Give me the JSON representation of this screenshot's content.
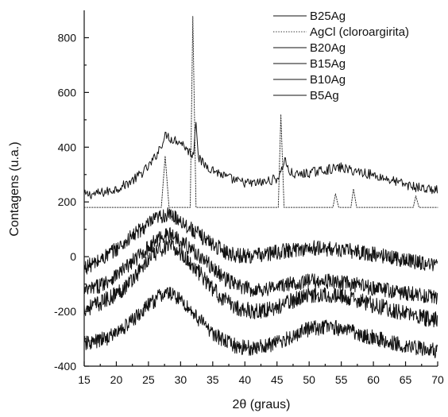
{
  "chart_data": {
    "type": "line",
    "xlabel": "2θ (graus)",
    "ylabel": "Contagens (u.a.)",
    "xlim": [
      15,
      70
    ],
    "ylim": [
      -400,
      900
    ],
    "x_ticks": [
      15,
      20,
      25,
      30,
      35,
      40,
      45,
      50,
      55,
      60,
      65,
      70
    ],
    "y_ticks": [
      -400,
      -200,
      0,
      200,
      400,
      600,
      800
    ],
    "grid": false,
    "legend_position": "top-right",
    "series": [
      {
        "name": "B25Ag",
        "style": "solid",
        "points": [
          [
            15,
            226
          ],
          [
            17,
            230
          ],
          [
            19,
            240
          ],
          [
            21,
            258
          ],
          [
            23,
            286
          ],
          [
            25,
            328
          ],
          [
            26,
            362
          ],
          [
            27,
            410
          ],
          [
            27.8,
            448
          ],
          [
            28.5,
            430
          ],
          [
            29.5,
            425
          ],
          [
            30.5,
            410
          ],
          [
            31,
            390
          ],
          [
            32,
            372
          ],
          [
            32.4,
            505
          ],
          [
            32.8,
            360
          ],
          [
            33.5,
            340
          ],
          [
            35,
            318
          ],
          [
            37,
            292
          ],
          [
            39,
            274
          ],
          [
            41,
            267
          ],
          [
            43,
            272
          ],
          [
            45,
            286
          ],
          [
            45.7,
            312
          ],
          [
            46.2,
            362
          ],
          [
            46.8,
            310
          ],
          [
            48,
            298
          ],
          [
            50,
            306
          ],
          [
            52,
            315
          ],
          [
            54,
            322
          ],
          [
            55,
            326
          ],
          [
            56,
            318
          ],
          [
            58,
            310
          ],
          [
            60,
            298
          ],
          [
            62,
            285
          ],
          [
            64,
            270
          ],
          [
            66,
            257
          ],
          [
            68,
            248
          ],
          [
            70,
            242
          ]
        ]
      },
      {
        "name": "AgCl (cloroargirita)",
        "style": "dotted",
        "points": [
          [
            15,
            180
          ],
          [
            27,
            180
          ],
          [
            27.6,
            368
          ],
          [
            28.2,
            180
          ],
          [
            31.5,
            180
          ],
          [
            31.9,
            878
          ],
          [
            32.4,
            180
          ],
          [
            45.2,
            180
          ],
          [
            45.6,
            520
          ],
          [
            46.1,
            180
          ],
          [
            53.7,
            180
          ],
          [
            54.1,
            230
          ],
          [
            54.6,
            180
          ],
          [
            56.5,
            180
          ],
          [
            56.9,
            248
          ],
          [
            57.4,
            180
          ],
          [
            66.2,
            180
          ],
          [
            66.6,
            222
          ],
          [
            67.1,
            180
          ],
          [
            70,
            180
          ]
        ]
      },
      {
        "name": "B20Ag",
        "style": "solid",
        "points": [
          [
            15,
            -40
          ],
          [
            17,
            -20
          ],
          [
            19,
            12
          ],
          [
            21,
            45
          ],
          [
            23,
            85
          ],
          [
            25,
            118
          ],
          [
            26,
            135
          ],
          [
            27,
            148
          ],
          [
            28,
            152
          ],
          [
            29,
            146
          ],
          [
            30,
            133
          ],
          [
            31,
            112
          ],
          [
            33,
            78
          ],
          [
            35,
            46
          ],
          [
            37,
            18
          ],
          [
            39,
            4
          ],
          [
            41,
            3
          ],
          [
            43,
            8
          ],
          [
            45,
            16
          ],
          [
            47,
            24
          ],
          [
            49,
            29
          ],
          [
            51,
            31
          ],
          [
            53,
            29
          ],
          [
            55,
            25
          ],
          [
            57,
            19
          ],
          [
            59,
            12
          ],
          [
            61,
            5
          ],
          [
            63,
            -3
          ],
          [
            65,
            -12
          ],
          [
            67,
            -20
          ],
          [
            70,
            -30
          ]
        ]
      },
      {
        "name": "B15Ag",
        "style": "solid",
        "points": [
          [
            15,
            -128
          ],
          [
            17,
            -110
          ],
          [
            19,
            -82
          ],
          [
            21,
            -50
          ],
          [
            23,
            -8
          ],
          [
            25,
            34
          ],
          [
            26,
            55
          ],
          [
            27,
            75
          ],
          [
            28,
            82
          ],
          [
            29,
            76
          ],
          [
            30,
            62
          ],
          [
            31,
            40
          ],
          [
            33,
            2
          ],
          [
            35,
            -42
          ],
          [
            37,
            -82
          ],
          [
            39,
            -108
          ],
          [
            41,
            -120
          ],
          [
            43,
            -118
          ],
          [
            45,
            -110
          ],
          [
            47,
            -100
          ],
          [
            49,
            -92
          ],
          [
            51,
            -88
          ],
          [
            53,
            -90
          ],
          [
            55,
            -95
          ],
          [
            57,
            -102
          ],
          [
            59,
            -110
          ],
          [
            61,
            -118
          ],
          [
            63,
            -126
          ],
          [
            65,
            -134
          ],
          [
            67,
            -140
          ],
          [
            70,
            -148
          ]
        ]
      },
      {
        "name": "B10Ag",
        "style": "solid",
        "points": [
          [
            15,
            -190
          ],
          [
            17,
            -175
          ],
          [
            19,
            -150
          ],
          [
            21,
            -118
          ],
          [
            23,
            -68
          ],
          [
            25,
            -12
          ],
          [
            26,
            10
          ],
          [
            27,
            30
          ],
          [
            28,
            38
          ],
          [
            29,
            31
          ],
          [
            30,
            14
          ],
          [
            31,
            -10
          ],
          [
            33,
            -62
          ],
          [
            35,
            -118
          ],
          [
            37,
            -162
          ],
          [
            39,
            -188
          ],
          [
            41,
            -198
          ],
          [
            43,
            -196
          ],
          [
            45,
            -185
          ],
          [
            47,
            -165
          ],
          [
            49,
            -145
          ],
          [
            51,
            -137
          ],
          [
            53,
            -138
          ],
          [
            55,
            -146
          ],
          [
            57,
            -157
          ],
          [
            59,
            -170
          ],
          [
            61,
            -182
          ],
          [
            63,
            -195
          ],
          [
            65,
            -208
          ],
          [
            67,
            -220
          ],
          [
            70,
            -232
          ]
        ]
      },
      {
        "name": "B5Ag",
        "style": "solid",
        "points": [
          [
            15,
            -318
          ],
          [
            17,
            -310
          ],
          [
            19,
            -292
          ],
          [
            21,
            -262
          ],
          [
            23,
            -222
          ],
          [
            25,
            -178
          ],
          [
            26,
            -158
          ],
          [
            27,
            -140
          ],
          [
            28,
            -133
          ],
          [
            29,
            -140
          ],
          [
            30,
            -158
          ],
          [
            31,
            -182
          ],
          [
            33,
            -232
          ],
          [
            35,
            -278
          ],
          [
            37,
            -312
          ],
          [
            39,
            -330
          ],
          [
            41,
            -334
          ],
          [
            43,
            -327
          ],
          [
            45,
            -315
          ],
          [
            47,
            -295
          ],
          [
            49,
            -270
          ],
          [
            51,
            -260
          ],
          [
            53,
            -258
          ],
          [
            55,
            -262
          ],
          [
            57,
            -275
          ],
          [
            59,
            -290
          ],
          [
            61,
            -302
          ],
          [
            63,
            -313
          ],
          [
            65,
            -324
          ],
          [
            67,
            -334
          ],
          [
            70,
            -344
          ]
        ]
      }
    ]
  }
}
